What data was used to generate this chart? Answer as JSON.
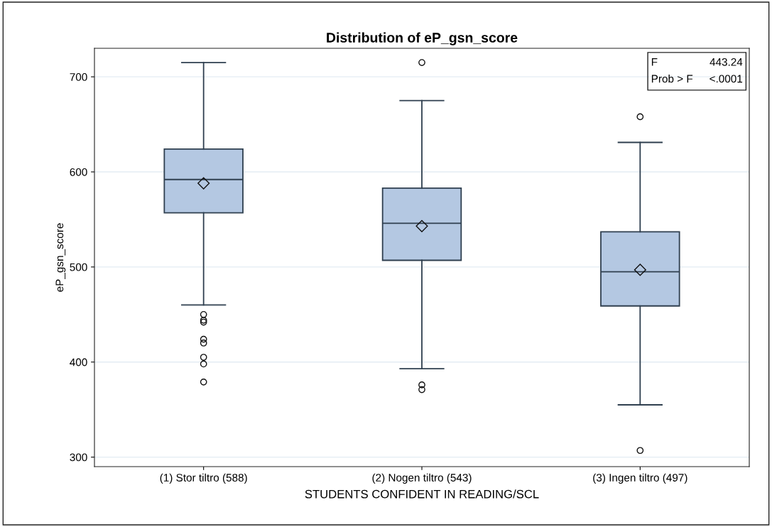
{
  "chart_data": {
    "type": "box",
    "title": "Distribution of eP_gsn_score",
    "xlabel": "STUDENTS CONFIDENT IN READING/SCL",
    "ylabel": "eP_gsn_score",
    "categories": [
      "(1) Stor tiltro (588)",
      "(2) Nogen tiltro (543)",
      "(3) Ingen tiltro (497)"
    ],
    "boxes": [
      {
        "low": 460,
        "q1": 557,
        "median": 592,
        "q3": 624,
        "high": 715,
        "mean": 588,
        "outliers": [
          450,
          444,
          442,
          424,
          420,
          405,
          398,
          379
        ]
      },
      {
        "low": 393,
        "q1": 507,
        "median": 546,
        "q3": 583,
        "high": 675,
        "mean": 543,
        "outliers": [
          715,
          376,
          371
        ]
      },
      {
        "low": 355,
        "q1": 459,
        "median": 495,
        "q3": 537,
        "high": 631,
        "mean": 497,
        "outliers": [
          658,
          307
        ]
      }
    ],
    "color": "#b4c8e2",
    "ylim": [
      290,
      730
    ],
    "yticks": [
      300,
      400,
      500,
      600,
      700
    ],
    "grid": "y",
    "annotations": [
      "F",
      "443.24",
      "Prob > F",
      "<.0001"
    ]
  }
}
